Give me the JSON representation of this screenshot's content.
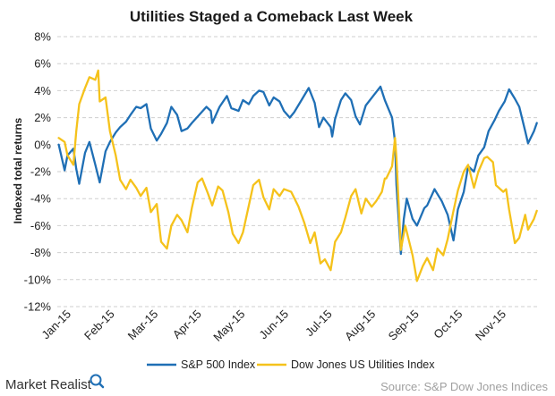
{
  "chart_data": {
    "type": "line",
    "title": "Utilities Staged a Comeback Last Week",
    "ylabel": "Indexed total returns",
    "ylim": [
      -12,
      8
    ],
    "yticks": [
      "8%",
      "6%",
      "4%",
      "2%",
      "0%",
      "-2%",
      "-4%",
      "-6%",
      "-8%",
      "-10%",
      "-12%"
    ],
    "x_tick_labels": [
      "Jan-15",
      "Feb-15",
      "Mar-15",
      "Apr-15",
      "May-15",
      "Jun-15",
      "Jul-15",
      "Aug-15",
      "Sep-15",
      "Oct-15",
      "Nov-15"
    ],
    "x_range": [
      "2015-01-01",
      "2015-11-27"
    ],
    "grid": "horizontal-dashed",
    "legend_position": "bottom",
    "series": [
      {
        "name": "S&P 500 Index",
        "color": "#1f6fb5",
        "points": [
          [
            "2015-01-02",
            0.0
          ],
          [
            "2015-01-06",
            -1.9
          ],
          [
            "2015-01-08",
            -0.8
          ],
          [
            "2015-01-12",
            -0.3
          ],
          [
            "2015-01-14",
            -1.8
          ],
          [
            "2015-01-16",
            -2.9
          ],
          [
            "2015-01-20",
            -0.6
          ],
          [
            "2015-01-23",
            0.2
          ],
          [
            "2015-01-27",
            -1.5
          ],
          [
            "2015-01-30",
            -2.8
          ],
          [
            "2015-02-03",
            -0.5
          ],
          [
            "2015-02-06",
            0.2
          ],
          [
            "2015-02-10",
            0.9
          ],
          [
            "2015-02-13",
            1.3
          ],
          [
            "2015-02-17",
            1.7
          ],
          [
            "2015-02-20",
            2.2
          ],
          [
            "2015-02-24",
            2.8
          ],
          [
            "2015-02-27",
            2.7
          ],
          [
            "2015-03-03",
            3.0
          ],
          [
            "2015-03-06",
            1.2
          ],
          [
            "2015-03-10",
            0.3
          ],
          [
            "2015-03-13",
            0.8
          ],
          [
            "2015-03-17",
            1.6
          ],
          [
            "2015-03-20",
            2.8
          ],
          [
            "2015-03-24",
            2.2
          ],
          [
            "2015-03-27",
            1.0
          ],
          [
            "2015-03-31",
            1.2
          ],
          [
            "2015-04-03",
            1.6
          ],
          [
            "2015-04-08",
            2.2
          ],
          [
            "2015-04-13",
            2.8
          ],
          [
            "2015-04-16",
            2.5
          ],
          [
            "2015-04-17",
            1.6
          ],
          [
            "2015-04-22",
            2.8
          ],
          [
            "2015-04-27",
            3.6
          ],
          [
            "2015-04-30",
            2.7
          ],
          [
            "2015-05-05",
            2.5
          ],
          [
            "2015-05-08",
            3.3
          ],
          [
            "2015-05-12",
            3.0
          ],
          [
            "2015-05-15",
            3.6
          ],
          [
            "2015-05-19",
            4.0
          ],
          [
            "2015-05-22",
            3.9
          ],
          [
            "2015-05-26",
            2.9
          ],
          [
            "2015-05-29",
            3.5
          ],
          [
            "2015-06-02",
            3.2
          ],
          [
            "2015-06-05",
            2.5
          ],
          [
            "2015-06-09",
            2.0
          ],
          [
            "2015-06-12",
            2.4
          ],
          [
            "2015-06-17",
            3.3
          ],
          [
            "2015-06-22",
            4.2
          ],
          [
            "2015-06-26",
            3.1
          ],
          [
            "2015-06-29",
            1.3
          ],
          [
            "2015-07-02",
            2.0
          ],
          [
            "2015-07-07",
            1.3
          ],
          [
            "2015-07-08",
            0.6
          ],
          [
            "2015-07-10",
            1.9
          ],
          [
            "2015-07-14",
            3.3
          ],
          [
            "2015-07-17",
            3.8
          ],
          [
            "2015-07-21",
            3.3
          ],
          [
            "2015-07-24",
            2.1
          ],
          [
            "2015-07-27",
            1.5
          ],
          [
            "2015-07-31",
            2.9
          ],
          [
            "2015-08-05",
            3.6
          ],
          [
            "2015-08-10",
            4.3
          ],
          [
            "2015-08-13",
            3.3
          ],
          [
            "2015-08-18",
            2.0
          ],
          [
            "2015-08-20",
            0.2
          ],
          [
            "2015-08-21",
            -3.0
          ],
          [
            "2015-08-24",
            -8.1
          ],
          [
            "2015-08-26",
            -5.5
          ],
          [
            "2015-08-28",
            -4.0
          ],
          [
            "2015-09-01",
            -5.5
          ],
          [
            "2015-09-04",
            -6.0
          ],
          [
            "2015-09-09",
            -4.7
          ],
          [
            "2015-09-11",
            -4.5
          ],
          [
            "2015-09-16",
            -3.3
          ],
          [
            "2015-09-21",
            -4.2
          ],
          [
            "2015-09-25",
            -5.2
          ],
          [
            "2015-09-29",
            -7.1
          ],
          [
            "2015-10-02",
            -4.8
          ],
          [
            "2015-10-06",
            -3.5
          ],
          [
            "2015-10-09",
            -1.6
          ],
          [
            "2015-10-13",
            -2.0
          ],
          [
            "2015-10-16",
            -0.8
          ],
          [
            "2015-10-20",
            -0.2
          ],
          [
            "2015-10-23",
            1.0
          ],
          [
            "2015-10-27",
            1.8
          ],
          [
            "2015-10-30",
            2.5
          ],
          [
            "2015-11-03",
            3.2
          ],
          [
            "2015-11-06",
            4.1
          ],
          [
            "2015-11-10",
            3.4
          ],
          [
            "2015-11-13",
            2.8
          ],
          [
            "2015-11-17",
            1.0
          ],
          [
            "2015-11-19",
            0.1
          ],
          [
            "2015-11-23",
            1.0
          ],
          [
            "2015-11-25",
            1.6
          ]
        ]
      },
      {
        "name": "Dow Jones US Utilities Index",
        "color": "#f5c21b",
        "points": [
          [
            "2015-01-02",
            0.5
          ],
          [
            "2015-01-06",
            0.2
          ],
          [
            "2015-01-08",
            -0.8
          ],
          [
            "2015-01-12",
            -1.5
          ],
          [
            "2015-01-14",
            1.0
          ],
          [
            "2015-01-16",
            3.0
          ],
          [
            "2015-01-20",
            4.2
          ],
          [
            "2015-01-23",
            5.0
          ],
          [
            "2015-01-27",
            4.8
          ],
          [
            "2015-01-29",
            5.5
          ],
          [
            "2015-01-30",
            3.2
          ],
          [
            "2015-02-03",
            3.5
          ],
          [
            "2015-02-06",
            1.0
          ],
          [
            "2015-02-10",
            -0.8
          ],
          [
            "2015-02-13",
            -2.6
          ],
          [
            "2015-02-17",
            -3.3
          ],
          [
            "2015-02-20",
            -2.6
          ],
          [
            "2015-02-24",
            -3.2
          ],
          [
            "2015-02-27",
            -3.8
          ],
          [
            "2015-03-03",
            -3.2
          ],
          [
            "2015-03-06",
            -5.0
          ],
          [
            "2015-03-10",
            -4.4
          ],
          [
            "2015-03-13",
            -7.2
          ],
          [
            "2015-03-17",
            -7.7
          ],
          [
            "2015-03-20",
            -6.0
          ],
          [
            "2015-03-24",
            -5.2
          ],
          [
            "2015-03-27",
            -5.6
          ],
          [
            "2015-03-31",
            -6.5
          ],
          [
            "2015-04-03",
            -4.7
          ],
          [
            "2015-04-07",
            -2.8
          ],
          [
            "2015-04-10",
            -2.5
          ],
          [
            "2015-04-14",
            -3.6
          ],
          [
            "2015-04-17",
            -4.5
          ],
          [
            "2015-04-21",
            -3.1
          ],
          [
            "2015-04-24",
            -3.4
          ],
          [
            "2015-04-28",
            -5.0
          ],
          [
            "2015-05-01",
            -6.6
          ],
          [
            "2015-05-05",
            -7.3
          ],
          [
            "2015-05-08",
            -6.5
          ],
          [
            "2015-05-12",
            -4.5
          ],
          [
            "2015-05-15",
            -3.0
          ],
          [
            "2015-05-19",
            -2.6
          ],
          [
            "2015-05-22",
            -3.9
          ],
          [
            "2015-05-26",
            -4.8
          ],
          [
            "2015-05-29",
            -3.3
          ],
          [
            "2015-06-02",
            -3.8
          ],
          [
            "2015-06-05",
            -3.3
          ],
          [
            "2015-06-10",
            -3.5
          ],
          [
            "2015-06-15",
            -4.6
          ],
          [
            "2015-06-19",
            -5.8
          ],
          [
            "2015-06-23",
            -7.3
          ],
          [
            "2015-06-26",
            -6.5
          ],
          [
            "2015-06-30",
            -8.8
          ],
          [
            "2015-07-03",
            -8.5
          ],
          [
            "2015-07-07",
            -9.3
          ],
          [
            "2015-07-10",
            -7.2
          ],
          [
            "2015-07-14",
            -6.5
          ],
          [
            "2015-07-17",
            -5.4
          ],
          [
            "2015-07-21",
            -3.8
          ],
          [
            "2015-07-24",
            -3.3
          ],
          [
            "2015-07-28",
            -5.1
          ],
          [
            "2015-07-31",
            -4.0
          ],
          [
            "2015-08-04",
            -4.6
          ],
          [
            "2015-08-07",
            -4.2
          ],
          [
            "2015-08-11",
            -3.5
          ],
          [
            "2015-08-13",
            -2.5
          ],
          [
            "2015-08-14",
            -2.5
          ],
          [
            "2015-08-18",
            -1.6
          ],
          [
            "2015-08-20",
            0.5
          ],
          [
            "2015-08-21",
            -1.0
          ],
          [
            "2015-08-24",
            -7.8
          ],
          [
            "2015-08-27",
            -6.0
          ],
          [
            "2015-09-01",
            -8.2
          ],
          [
            "2015-09-04",
            -10.1
          ],
          [
            "2015-09-08",
            -9.0
          ],
          [
            "2015-09-11",
            -8.4
          ],
          [
            "2015-09-15",
            -9.3
          ],
          [
            "2015-09-18",
            -7.7
          ],
          [
            "2015-09-22",
            -8.2
          ],
          [
            "2015-09-25",
            -7.0
          ],
          [
            "2015-09-29",
            -4.9
          ],
          [
            "2015-10-02",
            -3.4
          ],
          [
            "2015-10-06",
            -2.0
          ],
          [
            "2015-10-09",
            -1.5
          ],
          [
            "2015-10-13",
            -3.2
          ],
          [
            "2015-10-16",
            -2.0
          ],
          [
            "2015-10-20",
            -1.0
          ],
          [
            "2015-10-22",
            -0.9
          ],
          [
            "2015-10-26",
            -1.3
          ],
          [
            "2015-10-28",
            -3.0
          ],
          [
            "2015-11-02",
            -3.5
          ],
          [
            "2015-11-04",
            -3.3
          ],
          [
            "2015-11-06",
            -4.8
          ],
          [
            "2015-11-10",
            -7.3
          ],
          [
            "2015-11-13",
            -6.9
          ],
          [
            "2015-11-17",
            -5.2
          ],
          [
            "2015-11-19",
            -6.3
          ],
          [
            "2015-11-23",
            -5.5
          ],
          [
            "2015-11-25",
            -4.9
          ]
        ]
      }
    ]
  },
  "branding": {
    "logo_text": "Market Realist",
    "logo_icon": "magnifier-icon",
    "source": "Source: S&P Dow Jones Indices"
  }
}
